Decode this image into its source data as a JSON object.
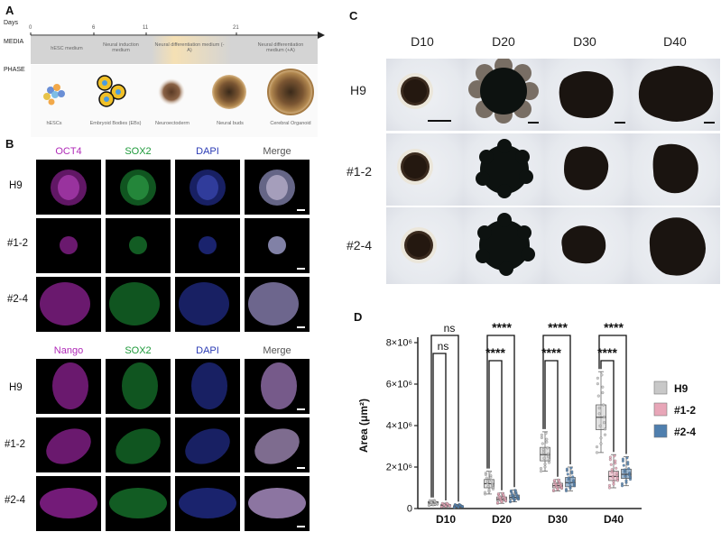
{
  "panels": {
    "a": "A",
    "b": "B",
    "c": "C",
    "d": "D"
  },
  "panelA": {
    "days_label": "Days",
    "day_ticks": [
      "0",
      "6",
      "11",
      "21"
    ],
    "media_label": "MEDIA",
    "phase_label": "PHASE",
    "media": [
      "hESC medium",
      "Neural induction medium",
      "Neural differentiation medium (-A)",
      "Neural differentiation medium (+A)"
    ],
    "phases": [
      "hESCs",
      "Embryoid Bodies (EBs)",
      "Neuroectoderm",
      "Neural buds",
      "Cerebral Organoid"
    ]
  },
  "panelB": {
    "top_channels": [
      "OCT4",
      "SOX2",
      "DAPI",
      "Merge"
    ],
    "bottom_channels": [
      "Nango",
      "SOX2",
      "DAPI",
      "Merge"
    ],
    "rows": [
      "H9",
      "#1-2",
      "#2-4"
    ],
    "colors": {
      "magenta": "#b02ab8",
      "green": "#1e9a3a",
      "blue": "#2b3bb5",
      "merge": "#555555"
    }
  },
  "panelC": {
    "days": [
      "D10",
      "D20",
      "D30",
      "D40"
    ],
    "lines": [
      "H9",
      "#1-2",
      "#2-4"
    ]
  },
  "chart_data": {
    "type": "box",
    "title": "",
    "xlabel": "",
    "ylabel": "Area (μm²)",
    "ylim": [
      0,
      8000000
    ],
    "yticks": [
      "0",
      "2×10⁶",
      "4×10⁶",
      "6×10⁶",
      "8×10⁶"
    ],
    "categories": [
      "D10",
      "D20",
      "D30",
      "D40"
    ],
    "legend_position": "right",
    "series": [
      {
        "name": "H9",
        "color": "#c8c8c8",
        "median": [
          300000,
          1200000,
          2600000,
          4400000
        ],
        "q1": [
          250000,
          1000000,
          2300000,
          3800000
        ],
        "q3": [
          330000,
          1400000,
          2950000,
          5000000
        ],
        "min": [
          150000,
          700000,
          1800000,
          2700000
        ],
        "max": [
          400000,
          1800000,
          3700000,
          6600000
        ]
      },
      {
        "name": "#1-2",
        "color": "#e8a6b8",
        "median": [
          150000,
          450000,
          1100000,
          1550000
        ],
        "q1": [
          120000,
          380000,
          1000000,
          1350000
        ],
        "q3": [
          190000,
          560000,
          1220000,
          1800000
        ],
        "min": [
          80000,
          250000,
          850000,
          1000000
        ],
        "max": [
          260000,
          750000,
          1400000,
          2600000
        ]
      },
      {
        "name": "#2-4",
        "color": "#4f7fae",
        "median": [
          100000,
          540000,
          1250000,
          1650000
        ],
        "q1": [
          80000,
          450000,
          1050000,
          1450000
        ],
        "q3": [
          140000,
          650000,
          1500000,
          1900000
        ],
        "min": [
          50000,
          320000,
          850000,
          1100000
        ],
        "max": [
          200000,
          900000,
          2000000,
          2500000
        ]
      }
    ],
    "significance": [
      {
        "day": "D10",
        "outer": "ns",
        "inner": "ns"
      },
      {
        "day": "D20",
        "outer": "****",
        "inner": "****"
      },
      {
        "day": "D30",
        "outer": "****",
        "inner": "****"
      },
      {
        "day": "D40",
        "outer": "****",
        "inner": "****"
      }
    ]
  }
}
